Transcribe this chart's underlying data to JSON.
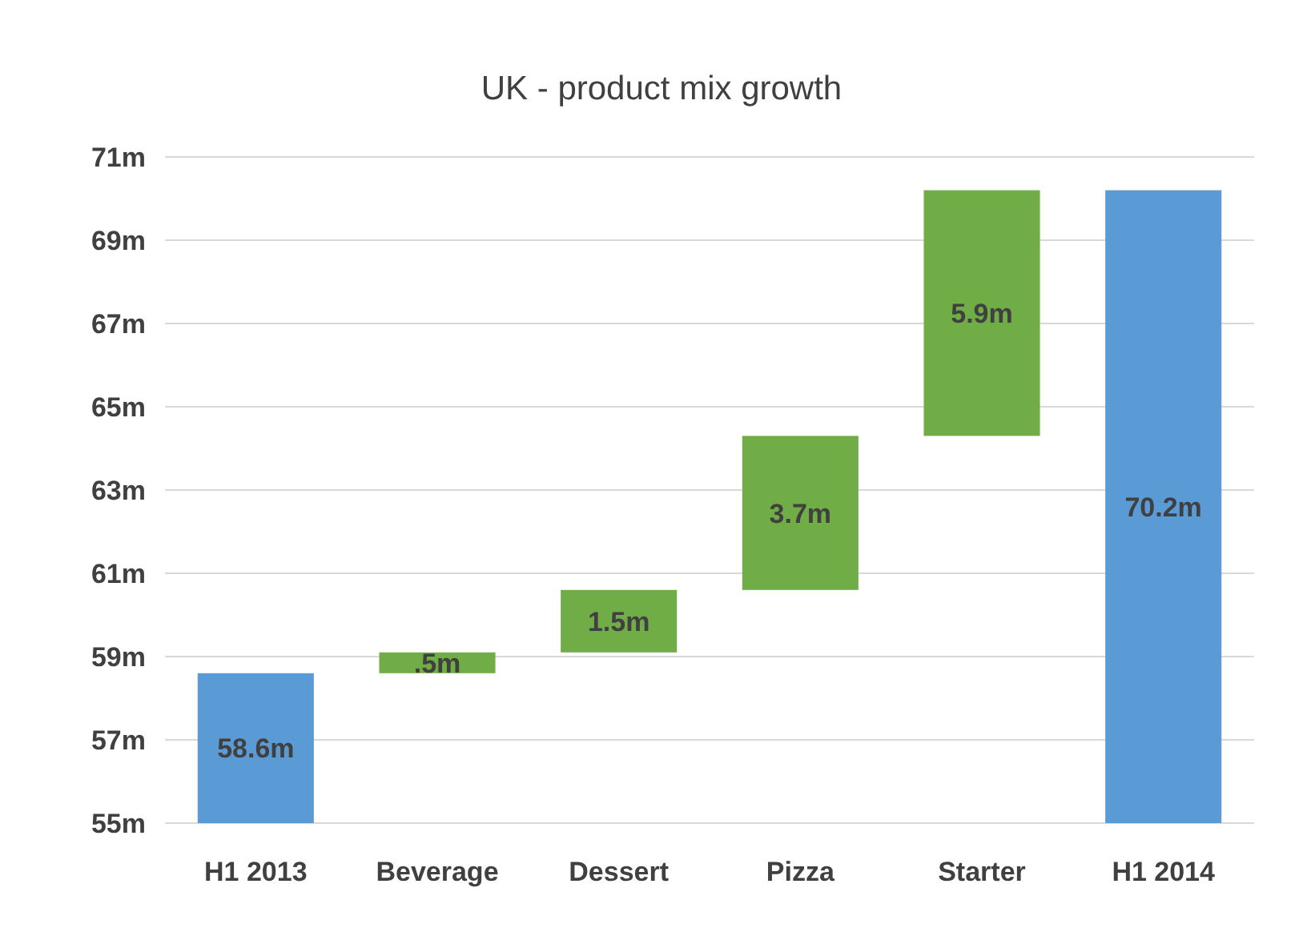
{
  "chart_data": {
    "type": "bar",
    "title": "UK - product mix growth",
    "categories": [
      "H1 2013",
      "Beverage",
      "Dessert",
      "Pizza",
      "Starter",
      "H1 2014"
    ],
    "values": [
      58.6,
      0.5,
      1.5,
      3.7,
      5.9,
      70.2
    ],
    "base": [
      null,
      58.6,
      59.1,
      60.6,
      64.3,
      null
    ],
    "colors": [
      "#5b9bd5",
      "#70ad47",
      "#70ad47",
      "#70ad47",
      "#70ad47",
      "#5b9bd5"
    ],
    "value_labels": [
      "58.6m",
      ".5m",
      "1.5m",
      "3.7m",
      "5.9m",
      "70.2m"
    ],
    "ylim": [
      55,
      71
    ],
    "yticks": [
      {
        "value": 55,
        "label": "55m"
      },
      {
        "value": 57,
        "label": "57m"
      },
      {
        "value": 59,
        "label": "59m"
      },
      {
        "value": 61,
        "label": "61m"
      },
      {
        "value": 63,
        "label": "63m"
      },
      {
        "value": 65,
        "label": "65m"
      },
      {
        "value": 67,
        "label": "67m"
      },
      {
        "value": 69,
        "label": "69m"
      },
      {
        "value": 71,
        "label": "71m"
      }
    ],
    "grid": "y"
  }
}
